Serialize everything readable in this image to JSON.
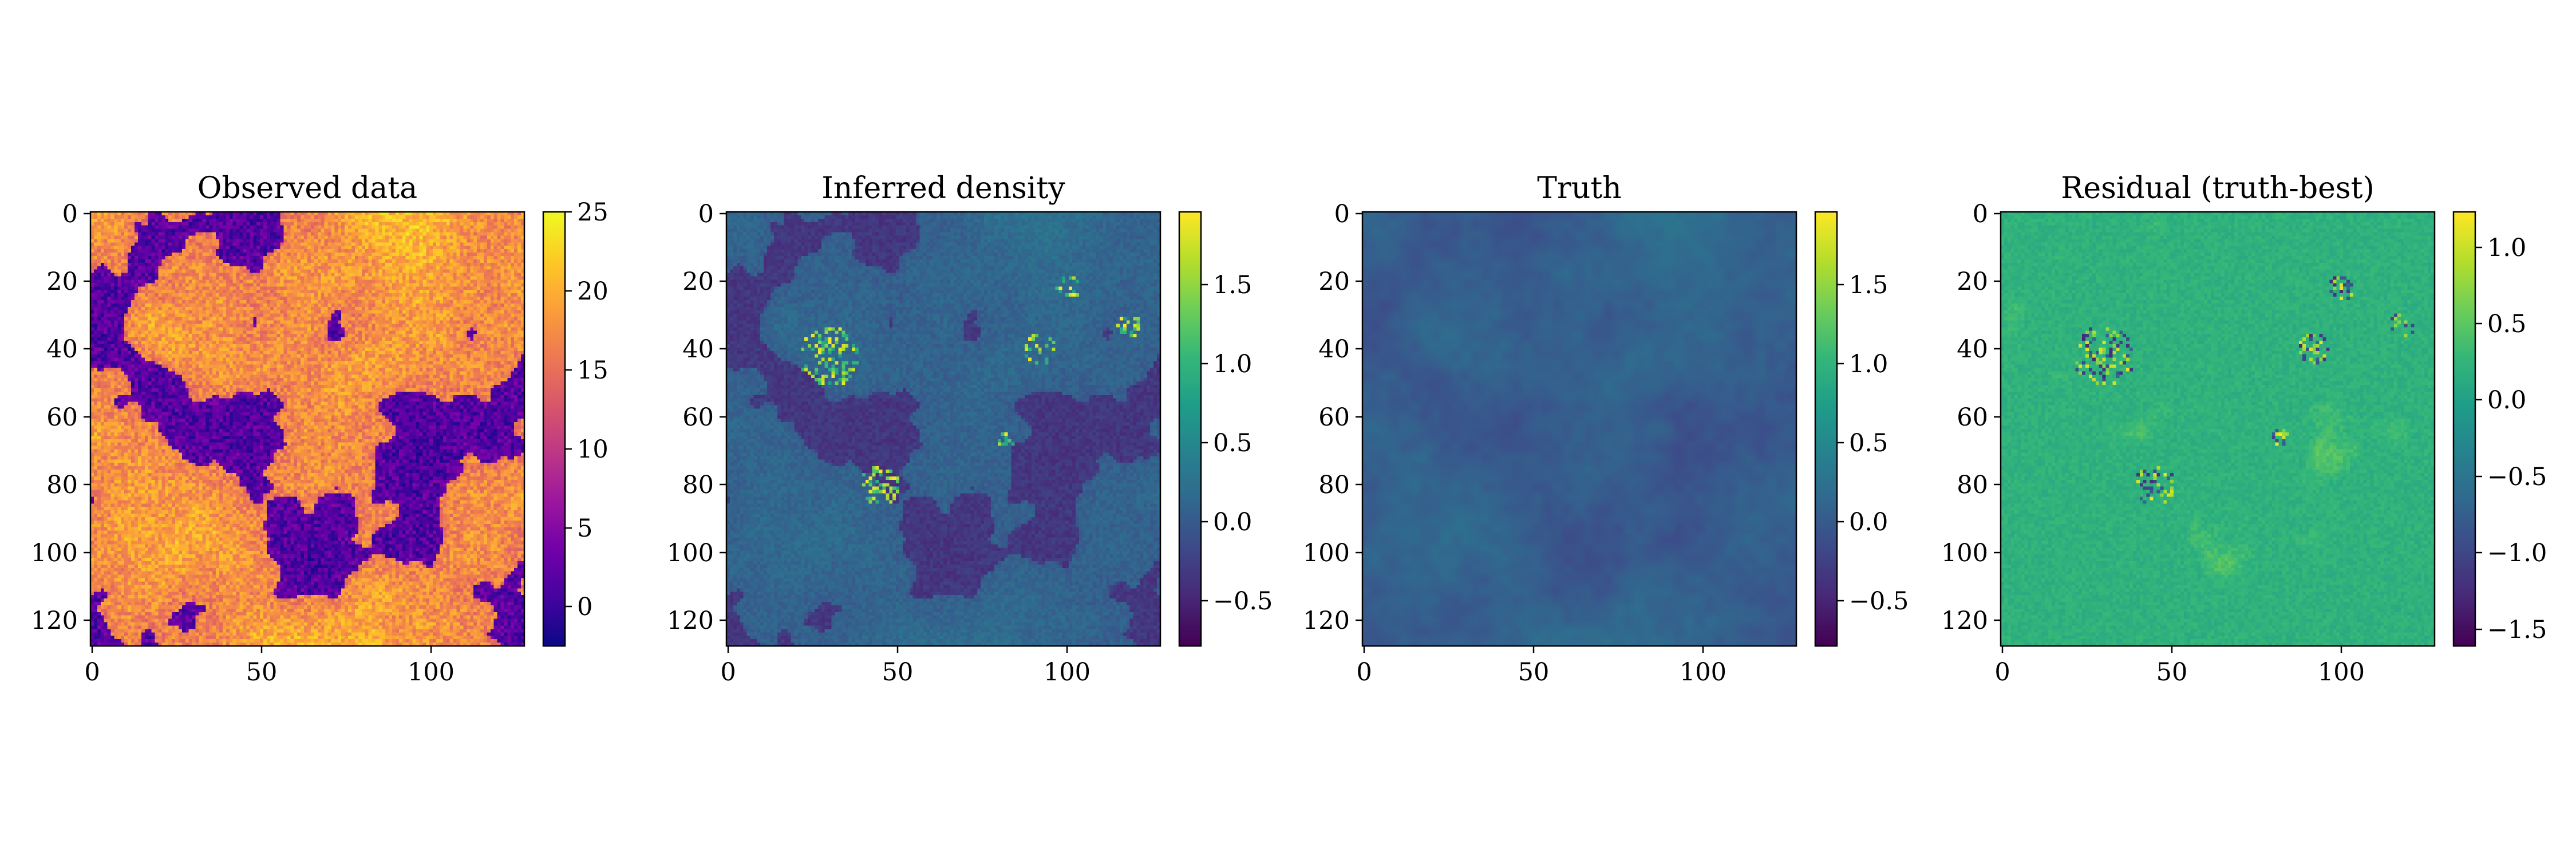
{
  "figure": {
    "panels": [
      {
        "title": "Observed data",
        "colormap": "plasma",
        "colorbar_ticks": [
          "25",
          "20",
          "15",
          "10",
          "5",
          "0"
        ]
      },
      {
        "title": "Inferred density",
        "colormap": "viridis",
        "colorbar_ticks": [
          "1.5",
          "1.0",
          "0.5",
          "0.0",
          "−0.5"
        ]
      },
      {
        "title": "Truth",
        "colormap": "viridis",
        "colorbar_ticks": [
          "1.5",
          "1.0",
          "0.5",
          "0.0",
          "−0.5"
        ]
      },
      {
        "title": "Residual (truth-best)",
        "colormap": "viridis",
        "colorbar_ticks": [
          "1.0",
          "0.5",
          "0.0",
          "−0.5",
          "−1.0",
          "−1.5"
        ]
      }
    ],
    "x_tick_labels": [
      "0",
      "50",
      "100"
    ],
    "y_tick_labels": [
      "0",
      "20",
      "40",
      "60",
      "80",
      "100",
      "120"
    ]
  },
  "chart_data": [
    {
      "type": "heatmap",
      "title": "Observed data",
      "grid_size": [
        128,
        128
      ],
      "x_ticks": [
        0,
        50,
        100
      ],
      "y_ticks": [
        0,
        20,
        40,
        60,
        80,
        100,
        120
      ],
      "xlim": [
        0,
        128
      ],
      "ylim": [
        128,
        0
      ],
      "y_inverted": true,
      "colorbar": {
        "range": [
          -2.5,
          25
        ],
        "ticks": [
          0,
          5,
          10,
          15,
          20,
          25
        ],
        "colormap": "plasma"
      }
    },
    {
      "type": "heatmap",
      "title": "Inferred density",
      "grid_size": [
        128,
        128
      ],
      "x_ticks": [
        0,
        50,
        100
      ],
      "y_ticks": [
        0,
        20,
        40,
        60,
        80,
        100,
        120
      ],
      "xlim": [
        0,
        128
      ],
      "ylim": [
        128,
        0
      ],
      "y_inverted": true,
      "colorbar": {
        "range": [
          -0.8,
          1.95
        ],
        "ticks": [
          -0.5,
          0.0,
          0.5,
          1.0,
          1.5
        ],
        "colormap": "viridis"
      }
    },
    {
      "type": "heatmap",
      "title": "Truth",
      "grid_size": [
        128,
        128
      ],
      "x_ticks": [
        0,
        50,
        100
      ],
      "y_ticks": [
        0,
        20,
        40,
        60,
        80,
        100,
        120
      ],
      "xlim": [
        0,
        128
      ],
      "ylim": [
        128,
        0
      ],
      "y_inverted": true,
      "colorbar": {
        "range": [
          -0.8,
          1.95
        ],
        "ticks": [
          -0.5,
          0.0,
          0.5,
          1.0,
          1.5
        ],
        "colormap": "viridis"
      }
    },
    {
      "type": "heatmap",
      "title": "Residual (truth-best)",
      "grid_size": [
        128,
        128
      ],
      "x_ticks": [
        0,
        50,
        100
      ],
      "y_ticks": [
        0,
        20,
        40,
        60,
        80,
        100,
        120
      ],
      "xlim": [
        0,
        128
      ],
      "ylim": [
        128,
        0
      ],
      "y_inverted": true,
      "colorbar": {
        "range": [
          -1.62,
          1.22
        ],
        "ticks": [
          -1.5,
          -1.0,
          -0.5,
          0.0,
          0.5,
          1.0
        ],
        "colormap": "viridis"
      }
    }
  ],
  "colormaps": {
    "plasma": [
      "#0d0887",
      "#46039f",
      "#7201a8",
      "#9c179e",
      "#bd3786",
      "#d8576b",
      "#ed7953",
      "#fb9f3a",
      "#fdca26",
      "#f0f921"
    ],
    "viridis": [
      "#440154",
      "#482878",
      "#3e4989",
      "#31688e",
      "#26828e",
      "#1f9e89",
      "#35b779",
      "#6ece58",
      "#b5de2b",
      "#fde725"
    ]
  }
}
